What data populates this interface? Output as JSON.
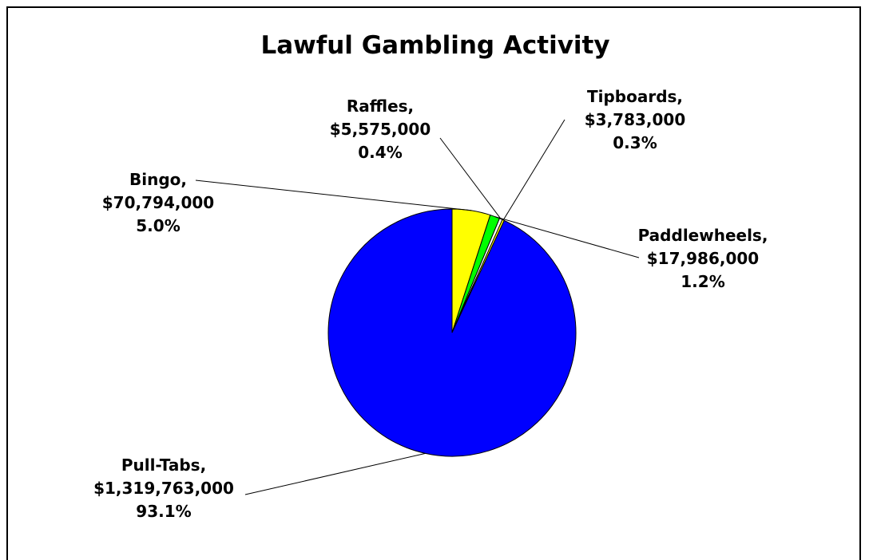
{
  "chart_data": {
    "type": "pie",
    "title": "Lawful Gambling Activity",
    "start_angle_deg": 0,
    "direction": "clockwise",
    "slices": [
      {
        "category": "Bingo",
        "name_line": "Bingo,",
        "amount": 70794000,
        "amount_label": "$70,794,000",
        "percent": 5.0,
        "percent_label": "5.0%",
        "color": "#FFFF00"
      },
      {
        "category": "Paddlewheels",
        "name_line": "Paddlewheels,",
        "amount": 17986000,
        "amount_label": "$17,986,000",
        "percent": 1.2,
        "percent_label": "1.2%",
        "color": "#00FF00"
      },
      {
        "category": "Raffles",
        "name_line": "Raffles,",
        "amount": 5575000,
        "amount_label": "$5,575,000",
        "percent": 0.4,
        "percent_label": "0.4%",
        "color": "#FFFFFF"
      },
      {
        "category": "Tipboards",
        "name_line": "Tipboards,",
        "amount": 3783000,
        "amount_label": "$3,783,000",
        "percent": 0.3,
        "percent_label": "0.3%",
        "color": "#FFFF00"
      },
      {
        "category": "Pull-Tabs",
        "name_line": "Pull-Tabs,",
        "amount": 1319763000,
        "amount_label": "$1,319,763,000",
        "percent": 93.1,
        "percent_label": "93.1%",
        "color": "#0000FF"
      }
    ]
  }
}
